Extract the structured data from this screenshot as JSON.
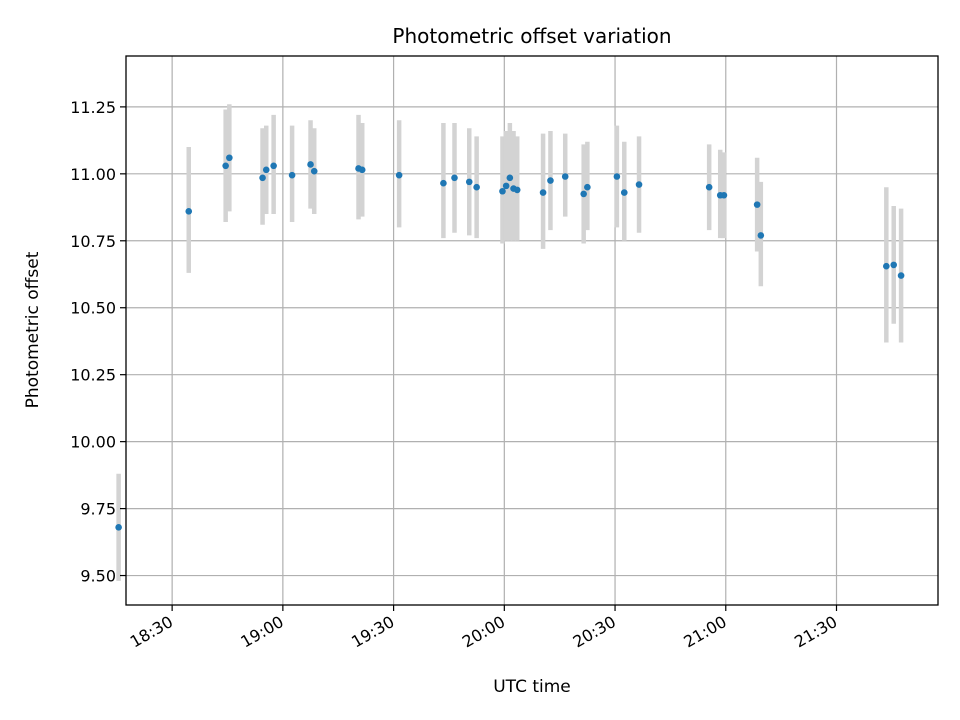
{
  "chart_data": {
    "type": "scatter",
    "title": "Photometric offset variation",
    "xlabel": "UTC time",
    "ylabel": "Photometric offset",
    "x_unit": "minutes since 18:00 UTC",
    "xlim": [
      17.5,
      237.5
    ],
    "ylim": [
      9.39,
      11.44
    ],
    "xticks": [
      {
        "value": 30,
        "label": "18:30"
      },
      {
        "value": 60,
        "label": "19:00"
      },
      {
        "value": 90,
        "label": "19:30"
      },
      {
        "value": 120,
        "label": "20:00"
      },
      {
        "value": 150,
        "label": "20:30"
      },
      {
        "value": 180,
        "label": "21:00"
      },
      {
        "value": 210,
        "label": "21:30"
      }
    ],
    "yticks": [
      {
        "value": 9.5,
        "label": "9.50"
      },
      {
        "value": 9.75,
        "label": "9.75"
      },
      {
        "value": 10.0,
        "label": "10.00"
      },
      {
        "value": 10.25,
        "label": "10.25"
      },
      {
        "value": 10.5,
        "label": "10.50"
      },
      {
        "value": 10.75,
        "label": "10.75"
      },
      {
        "value": 11.0,
        "label": "11.00"
      },
      {
        "value": 11.25,
        "label": "11.25"
      }
    ],
    "grid": true,
    "point_color": "#1f77b4",
    "errorbar_color": "#d3d3d3",
    "points": [
      {
        "x": 15.5,
        "y": 9.68,
        "lo": 9.48,
        "hi": 9.88
      },
      {
        "x": 34.5,
        "y": 10.86,
        "lo": 10.63,
        "hi": 11.1
      },
      {
        "x": 44.5,
        "y": 11.03,
        "lo": 10.82,
        "hi": 11.24
      },
      {
        "x": 45.5,
        "y": 11.06,
        "lo": 10.86,
        "hi": 11.26
      },
      {
        "x": 54.5,
        "y": 10.985,
        "lo": 10.81,
        "hi": 11.17
      },
      {
        "x": 55.5,
        "y": 11.015,
        "lo": 10.85,
        "hi": 11.18
      },
      {
        "x": 57.5,
        "y": 11.03,
        "lo": 10.85,
        "hi": 11.22
      },
      {
        "x": 62.5,
        "y": 10.995,
        "lo": 10.82,
        "hi": 11.18
      },
      {
        "x": 67.5,
        "y": 11.035,
        "lo": 10.87,
        "hi": 11.2
      },
      {
        "x": 68.5,
        "y": 11.01,
        "lo": 10.85,
        "hi": 11.17
      },
      {
        "x": 80.5,
        "y": 11.02,
        "lo": 10.83,
        "hi": 11.22
      },
      {
        "x": 81.5,
        "y": 11.015,
        "lo": 10.84,
        "hi": 11.19
      },
      {
        "x": 91.5,
        "y": 10.995,
        "lo": 10.8,
        "hi": 11.2
      },
      {
        "x": 103.5,
        "y": 10.965,
        "lo": 10.76,
        "hi": 11.19
      },
      {
        "x": 106.5,
        "y": 10.985,
        "lo": 10.78,
        "hi": 11.19
      },
      {
        "x": 110.5,
        "y": 10.97,
        "lo": 10.77,
        "hi": 11.17
      },
      {
        "x": 112.5,
        "y": 10.95,
        "lo": 10.76,
        "hi": 11.14
      },
      {
        "x": 119.5,
        "y": 10.935,
        "lo": 10.74,
        "hi": 11.14
      },
      {
        "x": 120.5,
        "y": 10.955,
        "lo": 10.75,
        "hi": 11.16
      },
      {
        "x": 121.5,
        "y": 10.985,
        "lo": 10.75,
        "hi": 11.19
      },
      {
        "x": 122.5,
        "y": 10.945,
        "lo": 10.75,
        "hi": 11.16
      },
      {
        "x": 123.5,
        "y": 10.94,
        "lo": 10.75,
        "hi": 11.14
      },
      {
        "x": 130.5,
        "y": 10.93,
        "lo": 10.72,
        "hi": 11.15
      },
      {
        "x": 132.5,
        "y": 10.975,
        "lo": 10.79,
        "hi": 11.16
      },
      {
        "x": 136.5,
        "y": 10.99,
        "lo": 10.84,
        "hi": 11.15
      },
      {
        "x": 141.5,
        "y": 10.925,
        "lo": 10.74,
        "hi": 11.11
      },
      {
        "x": 142.5,
        "y": 10.95,
        "lo": 10.79,
        "hi": 11.12
      },
      {
        "x": 150.5,
        "y": 10.99,
        "lo": 10.8,
        "hi": 11.18
      },
      {
        "x": 152.5,
        "y": 10.93,
        "lo": 10.75,
        "hi": 11.12
      },
      {
        "x": 156.5,
        "y": 10.96,
        "lo": 10.78,
        "hi": 11.14
      },
      {
        "x": 175.5,
        "y": 10.95,
        "lo": 10.79,
        "hi": 11.11
      },
      {
        "x": 178.5,
        "y": 10.92,
        "lo": 10.76,
        "hi": 11.09
      },
      {
        "x": 179.5,
        "y": 10.92,
        "lo": 10.76,
        "hi": 11.08
      },
      {
        "x": 188.5,
        "y": 10.885,
        "lo": 10.71,
        "hi": 11.06
      },
      {
        "x": 189.5,
        "y": 10.77,
        "lo": 10.58,
        "hi": 10.97
      },
      {
        "x": 223.5,
        "y": 10.655,
        "lo": 10.37,
        "hi": 10.95
      },
      {
        "x": 225.5,
        "y": 10.66,
        "lo": 10.44,
        "hi": 10.88
      },
      {
        "x": 227.5,
        "y": 10.62,
        "lo": 10.37,
        "hi": 10.87
      }
    ]
  }
}
